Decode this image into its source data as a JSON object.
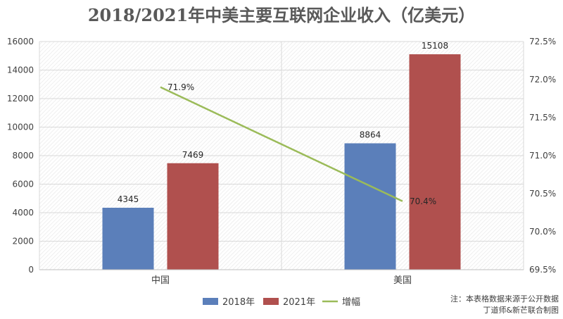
{
  "chart_data": {
    "type": "bar",
    "title": "2018/2021年中美主要互联网企业收入（亿美元）",
    "categories": [
      "中国",
      "美国"
    ],
    "series": [
      {
        "name": "2018年",
        "type": "bar",
        "axis": "left",
        "color": "#5B7FBA",
        "values": [
          4345,
          8864
        ],
        "labels": [
          "4345",
          "8864"
        ]
      },
      {
        "name": "2021年",
        "type": "bar",
        "axis": "left",
        "color": "#B0504E",
        "values": [
          7469,
          15108
        ],
        "labels": [
          "7469",
          "15108"
        ]
      },
      {
        "name": "增幅",
        "type": "line",
        "axis": "right",
        "color": "#9BBB59",
        "values": [
          71.9,
          70.4
        ],
        "labels": [
          "71.9%",
          "70.4%"
        ]
      }
    ],
    "ylim": [
      0,
      16000
    ],
    "y_ticks": [
      0,
      2000,
      4000,
      6000,
      8000,
      10000,
      12000,
      14000,
      16000
    ],
    "y_tick_labels": [
      "0",
      "2000",
      "4000",
      "6000",
      "8000",
      "10000",
      "12000",
      "14000",
      "16000"
    ],
    "y2lim": [
      69.5,
      72.5
    ],
    "y2_ticks": [
      69.5,
      70.0,
      70.5,
      71.0,
      71.5,
      72.0,
      72.5
    ],
    "y2_tick_labels": [
      "69.5%",
      "70.0%",
      "70.5%",
      "71.0%",
      "71.5%",
      "72.0%",
      "72.5%"
    ],
    "xlabel": "",
    "ylabel": "",
    "grid": true,
    "legend_position": "bottom",
    "note": [
      "注：本表格数据来源于公开数据",
      "丁道师&新芒联合制图"
    ]
  }
}
